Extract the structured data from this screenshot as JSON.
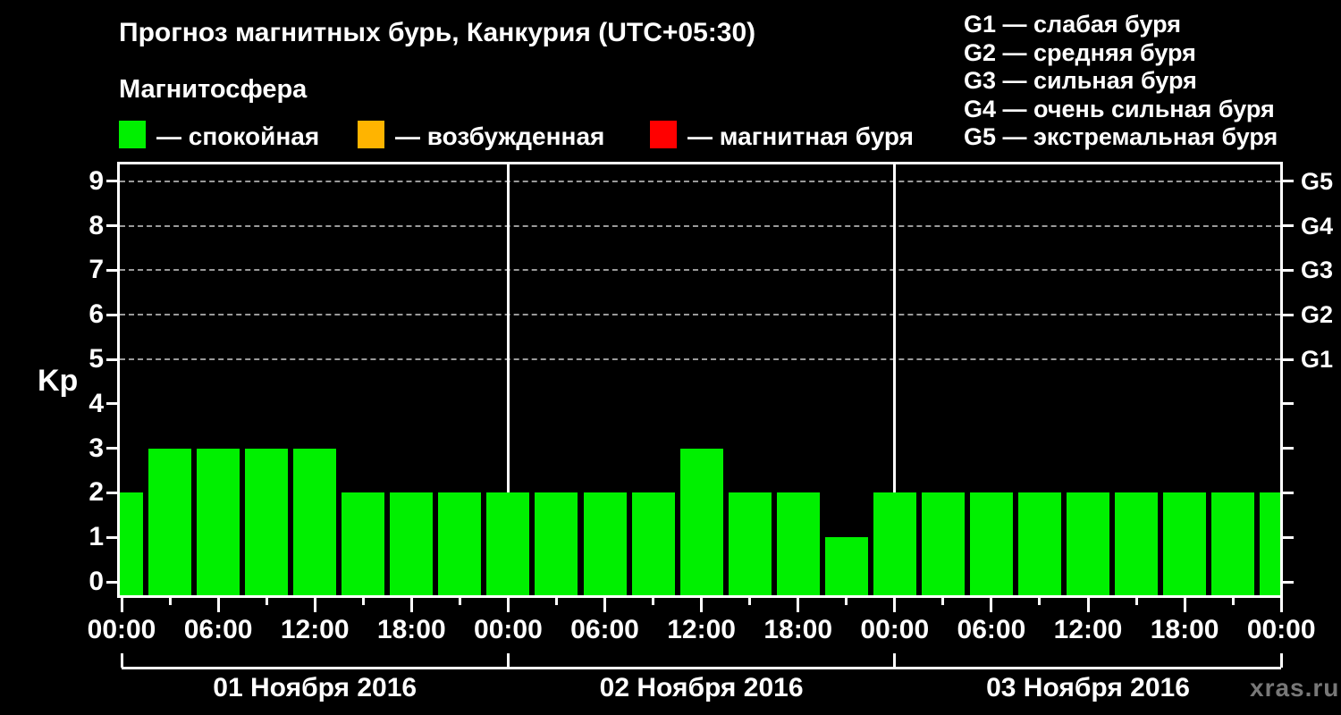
{
  "header": {
    "title": "Прогноз магнитных бурь, Канкурия (UTC+05:30)",
    "subtitle": "Магнитосфера",
    "condition_legend": [
      {
        "name": "quiet",
        "label": "— спокойная",
        "color": "#00f000"
      },
      {
        "name": "excited",
        "label": "— возбужденная",
        "color": "#ffb400"
      },
      {
        "name": "storm",
        "label": "— магнитная буря",
        "color": "#ff0000"
      }
    ],
    "storm_scale_legend": [
      {
        "code": "G1",
        "desc": "слабая буря"
      },
      {
        "code": "G2",
        "desc": "средняя буря"
      },
      {
        "code": "G3",
        "desc": "сильная буря"
      },
      {
        "code": "G4",
        "desc": "очень сильная буря"
      },
      {
        "code": "G5",
        "desc": "экстремальная буря"
      }
    ],
    "legend_separator": " — "
  },
  "chart_data": {
    "type": "bar",
    "title": "Прогноз магнитных бурь, Канкурия (UTC+05:30)",
    "ylabel": "Kp",
    "ylim": [
      0,
      9
    ],
    "y_ticks": [
      0,
      1,
      2,
      3,
      4,
      5,
      6,
      7,
      8,
      9
    ],
    "gridlines_at": [
      5,
      6,
      7,
      8,
      9
    ],
    "grid_style": "dashed-horizontal",
    "right_axis_labels": [
      {
        "kp": 9,
        "label": "G5"
      },
      {
        "kp": 8,
        "label": "G4"
      },
      {
        "kp": 7,
        "label": "G3"
      },
      {
        "kp": 6,
        "label": "G2"
      },
      {
        "kp": 5,
        "label": "G1"
      }
    ],
    "interval_hours": 3,
    "time_tick_cycle": [
      "00:00",
      "06:00",
      "12:00",
      "18:00"
    ],
    "days": [
      {
        "date": "01 Ноября 2016",
        "values": [
          2,
          3,
          3,
          3,
          3,
          2,
          2,
          2
        ]
      },
      {
        "date": "02 Ноября 2016",
        "values": [
          2,
          2,
          2,
          2,
          3,
          2,
          2,
          1
        ]
      },
      {
        "date": "03 Ноября 2016",
        "values": [
          2,
          2,
          2,
          2,
          2,
          2,
          2,
          2
        ]
      }
    ],
    "trailing_bar_value": 2,
    "color_rules": {
      "quiet_max_kp": 3,
      "excited_max_kp": 4
    },
    "bar_colors": {
      "quiet": "#00f000",
      "excited": "#ffb400",
      "storm": "#ff0000"
    },
    "legend_position": "top-left"
  },
  "footer": {
    "watermark": "xras.ru"
  }
}
